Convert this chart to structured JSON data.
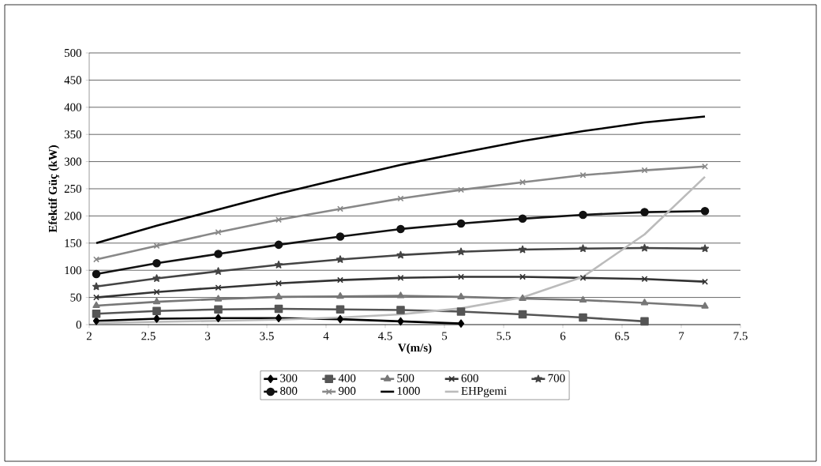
{
  "chart_data": {
    "type": "line",
    "xlabel": "V(m/s)",
    "ylabel": "Efektif Güç (kW)",
    "x": [
      2.06,
      2.57,
      3.09,
      3.6,
      4.12,
      4.63,
      5.14,
      5.66,
      6.17,
      6.69,
      7.2
    ],
    "xlim": [
      2,
      7.5
    ],
    "xticks": [
      2,
      2.5,
      3,
      3.5,
      4,
      4.5,
      5,
      5.5,
      6,
      6.5,
      7,
      7.5
    ],
    "ylim": [
      0,
      500
    ],
    "yticks": [
      0,
      50,
      100,
      150,
      200,
      250,
      300,
      350,
      400,
      450,
      500
    ],
    "grid": "y",
    "legend": "bottom",
    "series": [
      {
        "name": "300",
        "color": "#000000",
        "marker": "diamond",
        "values": [
          7,
          11,
          12,
          12,
          10,
          6,
          2,
          null,
          null,
          null,
          null
        ]
      },
      {
        "name": "400",
        "color": "#555555",
        "marker": "square",
        "values": [
          20,
          25,
          28,
          29,
          28,
          27,
          24,
          19,
          13,
          6,
          null
        ]
      },
      {
        "name": "500",
        "color": "#777777",
        "marker": "triangle",
        "values": [
          35,
          42,
          47,
          51,
          52,
          53,
          51,
          48,
          45,
          40,
          34
        ]
      },
      {
        "name": "600",
        "color": "#333333",
        "marker": "cross",
        "values": [
          50,
          60,
          68,
          76,
          82,
          86,
          88,
          88,
          86,
          84,
          79
        ]
      },
      {
        "name": "700",
        "color": "#444444",
        "marker": "star",
        "values": [
          70,
          85,
          98,
          110,
          120,
          128,
          134,
          138,
          140,
          141,
          140
        ]
      },
      {
        "name": "800",
        "color": "#111111",
        "marker": "circle",
        "values": [
          93,
          113,
          130,
          147,
          162,
          176,
          186,
          195,
          202,
          207,
          209
        ]
      },
      {
        "name": "900",
        "color": "#888888",
        "marker": "cross",
        "values": [
          120,
          145,
          170,
          193,
          213,
          232,
          248,
          262,
          275,
          284,
          291
        ]
      },
      {
        "name": "1000",
        "color": "#000000",
        "marker": "none",
        "values": [
          150,
          182,
          212,
          241,
          268,
          294,
          316,
          338,
          356,
          372,
          383
        ]
      },
      {
        "name": "EHPgemi",
        "color": "#bbbbbb",
        "marker": "none",
        "values": [
          3,
          5,
          7,
          9,
          13,
          19,
          30,
          50,
          88,
          166,
          272
        ]
      }
    ]
  }
}
